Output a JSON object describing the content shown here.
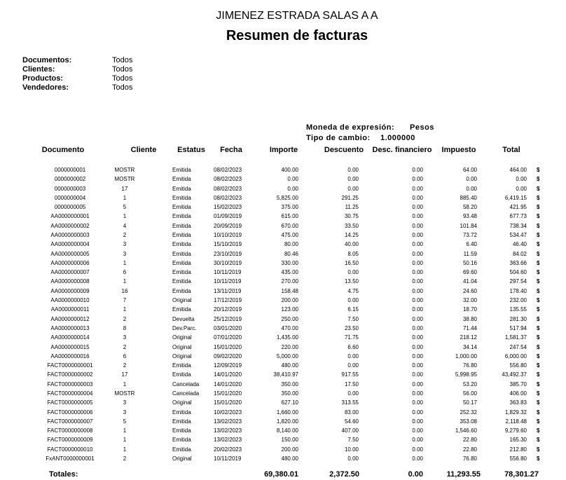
{
  "header": {
    "company": "JIMENEZ ESTRADA SALAS A A",
    "title": "Resumen de facturas"
  },
  "filters": [
    {
      "label": "Documentos:",
      "value": "Todos"
    },
    {
      "label": "Clientes:",
      "value": "Todos"
    },
    {
      "label": "Productos:",
      "value": "Todos"
    },
    {
      "label": "Vendedores:",
      "value": "Todos"
    }
  ],
  "currency": {
    "label": "Moneda de expresión:",
    "value": "Pesos"
  },
  "exchange": {
    "label": "Tipo de cambio:",
    "value": "1.000000"
  },
  "table": {
    "headers": [
      "Documento",
      "Cliente",
      "Estatus",
      "Fecha",
      "Importe",
      "Descuento",
      "Desc. financiero",
      "Impuesto",
      "Total"
    ],
    "currency_symbol": "$",
    "rows": [
      [
        "0000000001",
        "MOSTR",
        "Emitida",
        "08/02/2023",
        "400.00",
        "0.00",
        "0.00",
        "64.00",
        "464.00"
      ],
      [
        "0000000002",
        "MOSTR",
        "Emitida",
        "08/02/2023",
        "0.00",
        "0.00",
        "0.00",
        "0.00",
        "0.00"
      ],
      [
        "0000000003",
        "17",
        "Emitida",
        "08/02/2023",
        "0.00",
        "0.00",
        "0.00",
        "0.00",
        "0.00"
      ],
      [
        "0000000004",
        "1",
        "Emitida",
        "08/02/2023",
        "5,825.00",
        "291.25",
        "0.00",
        "885.40",
        "6,419.15"
      ],
      [
        "0000000005",
        "5",
        "Emitida",
        "15/02/2023",
        "375.00",
        "11.25",
        "0.00",
        "58.20",
        "421.95"
      ],
      [
        "AA0000000001",
        "1",
        "Emitida",
        "01/09/2019",
        "615.00",
        "30.75",
        "0.00",
        "93.48",
        "677.73"
      ],
      [
        "AA0000000002",
        "4",
        "Emitida",
        "20/09/2019",
        "670.00",
        "33.50",
        "0.00",
        "101.84",
        "738.34"
      ],
      [
        "AA0000000003",
        "2",
        "Emitida",
        "10/10/2019",
        "475.00",
        "14.25",
        "0.00",
        "73.72",
        "534.47"
      ],
      [
        "AA0000000004",
        "3",
        "Emitida",
        "15/10/2019",
        "80.00",
        "40.00",
        "0.00",
        "6.40",
        "46.40"
      ],
      [
        "AA0000000005",
        "3",
        "Emitida",
        "23/10/2019",
        "80.46",
        "8.05",
        "0.00",
        "11.59",
        "84.02"
      ],
      [
        "AA0000000006",
        "1",
        "Emitida",
        "30/10/2019",
        "330.00",
        "16.50",
        "0.00",
        "50.16",
        "363.66"
      ],
      [
        "AA0000000007",
        "6",
        "Emitida",
        "10/11/2019",
        "435.00",
        "0.00",
        "0.00",
        "69.60",
        "504.60"
      ],
      [
        "AA0000000008",
        "1",
        "Emitida",
        "10/11/2019",
        "270.00",
        "13.50",
        "0.00",
        "41.04",
        "297.54"
      ],
      [
        "AA0000000009",
        "16",
        "Emitida",
        "13/11/2019",
        "158.48",
        "4.75",
        "0.00",
        "24.60",
        "178.40"
      ],
      [
        "AA0000000010",
        "7",
        "Original",
        "17/12/2019",
        "200.00",
        "0.00",
        "0.00",
        "32.00",
        "232.00"
      ],
      [
        "AA0000000011",
        "1",
        "Emitida",
        "20/12/2019",
        "123.00",
        "6.15",
        "0.00",
        "18.70",
        "135.55"
      ],
      [
        "AA0000000012",
        "2",
        "Devuelta",
        "25/12/2019",
        "250.00",
        "7.50",
        "0.00",
        "38.80",
        "281.30"
      ],
      [
        "AA0000000013",
        "8",
        "Dev.Parc.",
        "03/01/2020",
        "470.00",
        "23.50",
        "0.00",
        "71.44",
        "517.94"
      ],
      [
        "AA0000000014",
        "3",
        "Original",
        "07/01/2020",
        "1,435.00",
        "71.75",
        "0.00",
        "218.12",
        "1,581.37"
      ],
      [
        "AA0000000015",
        "2",
        "Original",
        "15/01/2020",
        "220.00",
        "6.60",
        "0.00",
        "34.14",
        "247.54"
      ],
      [
        "AA0000000016",
        "6",
        "Original",
        "09/02/2020",
        "5,000.00",
        "0.00",
        "0.00",
        "1,000.00",
        "6,000.00"
      ],
      [
        "FACT0000000001",
        "2",
        "Emitida",
        "12/09/2019",
        "480.00",
        "0.00",
        "0.00",
        "76.80",
        "556.80"
      ],
      [
        "FACT0000000002",
        "17",
        "Emitida",
        "14/01/2020",
        "38,410.97",
        "917.55",
        "0.00",
        "5,998.95",
        "43,492.37"
      ],
      [
        "FACT0000000003",
        "1",
        "Cancelada",
        "14/01/2020",
        "350.00",
        "17.50",
        "0.00",
        "53.20",
        "385.70"
      ],
      [
        "FACT0000000004",
        "MOSTR",
        "Cancelada",
        "15/01/2020",
        "350.00",
        "0.00",
        "0.00",
        "56.00",
        "406.00"
      ],
      [
        "FACT0000000005",
        "3",
        "Original",
        "15/01/2020",
        "627.10",
        "313.55",
        "0.00",
        "50.17",
        "363.83"
      ],
      [
        "FACT0000000006",
        "3",
        "Emitida",
        "10/02/2023",
        "1,660.00",
        "83.00",
        "0.00",
        "252.32",
        "1,829.32"
      ],
      [
        "FACT0000000007",
        "5",
        "Emitida",
        "13/02/2023",
        "1,820.00",
        "54.60",
        "0.00",
        "353.08",
        "2,118.48"
      ],
      [
        "FACT0000000008",
        "1",
        "Emitida",
        "13/02/2023",
        "8,140.00",
        "407.00",
        "0.00",
        "1,546.60",
        "9,279.60"
      ],
      [
        "FACT0000000009",
        "1",
        "Emitida",
        "13/02/2023",
        "150.00",
        "7.50",
        "0.00",
        "22.80",
        "165.30"
      ],
      [
        "FACT0000000010",
        "1",
        "Emitida",
        "20/02/2023",
        "200.00",
        "10.00",
        "0.00",
        "22.80",
        "212.80"
      ],
      [
        "FxANT0000000001",
        "2",
        "Original",
        "10/11/2019",
        "480.00",
        "0.00",
        "0.00",
        "76.80",
        "556.80"
      ]
    ],
    "totals_label": "Totales:",
    "totals": [
      "69,380.01",
      "2,372.50",
      "0.00",
      "11,293.55",
      "78,301.27"
    ]
  }
}
